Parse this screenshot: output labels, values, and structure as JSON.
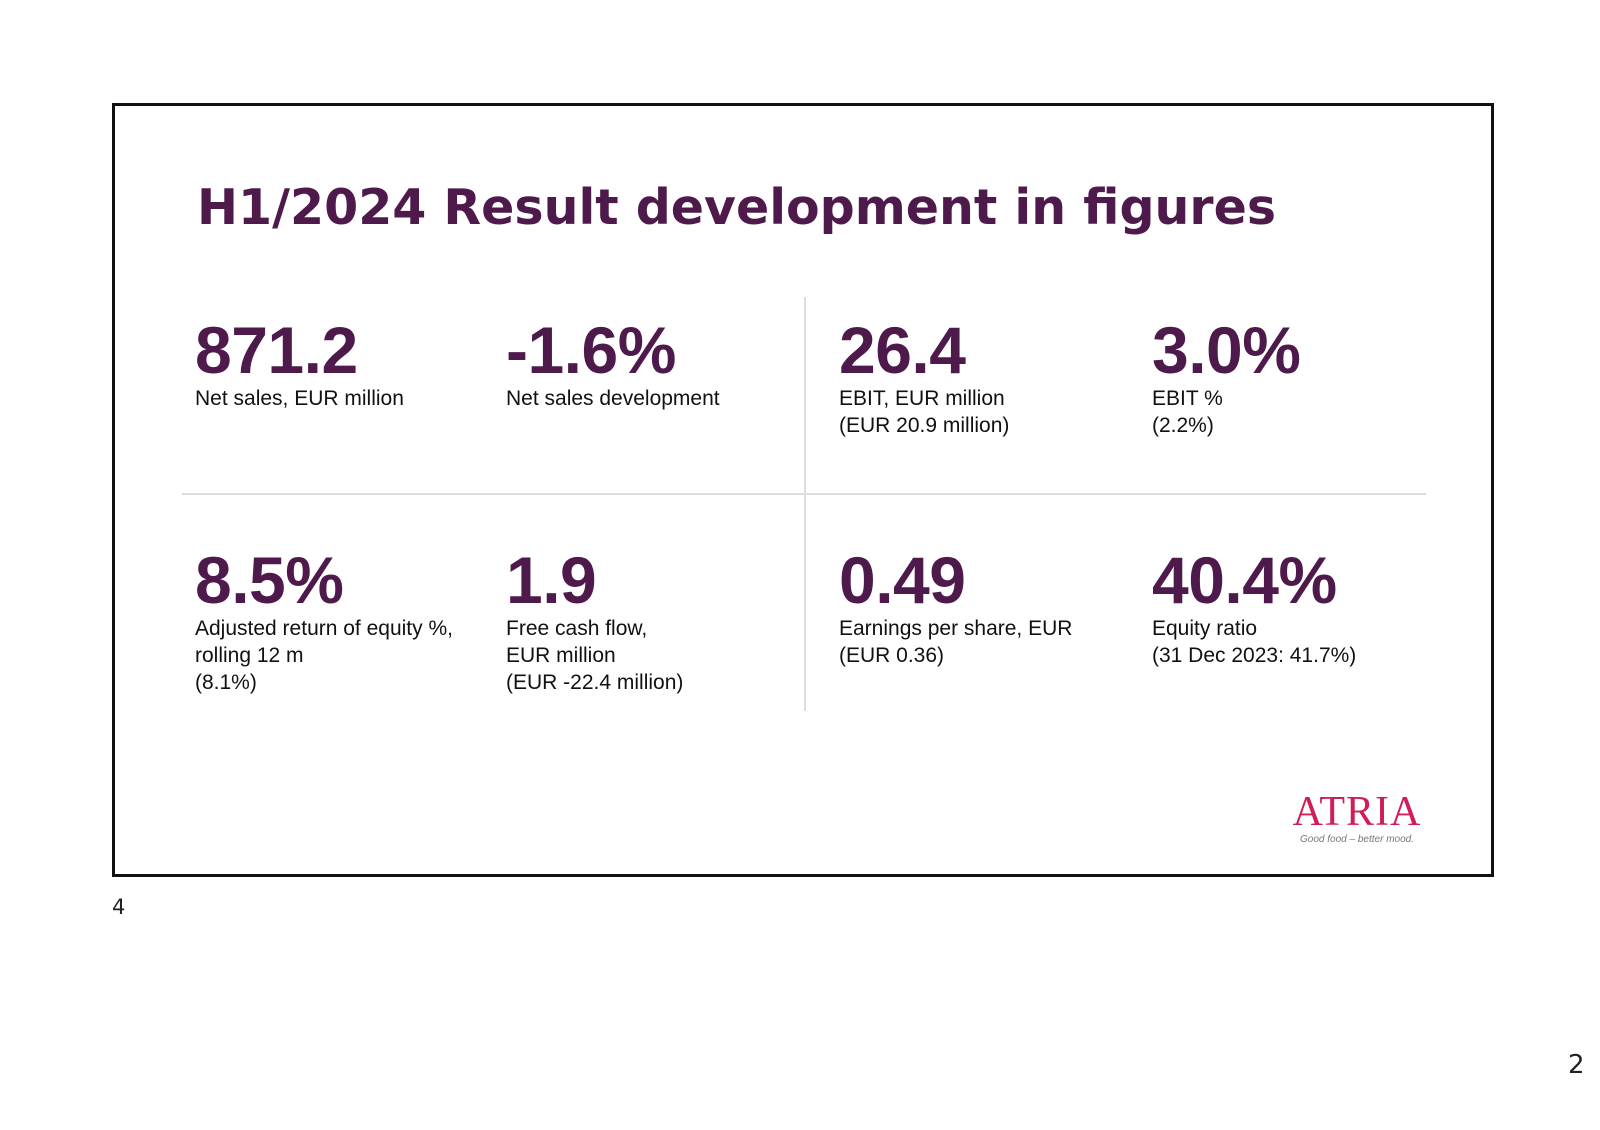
{
  "slide": {
    "title": "H1/2024 Result development in figures",
    "kpis": [
      {
        "value": "871.2",
        "lines": [
          "Net sales, EUR million"
        ]
      },
      {
        "value": "-1.6%",
        "lines": [
          "Net sales development"
        ]
      },
      {
        "value": "26.4",
        "lines": [
          "EBIT, EUR million",
          "(EUR 20.9 million)"
        ]
      },
      {
        "value": "3.0%",
        "lines": [
          "EBIT %",
          "(2.2%)"
        ]
      },
      {
        "value": "8.5%",
        "lines": [
          "Adjusted return of equity %,",
          "rolling 12 m",
          "(8.1%)"
        ]
      },
      {
        "value": "1.9",
        "lines": [
          "Free cash flow,",
          "EUR million",
          "(EUR -22.4 million)"
        ]
      },
      {
        "value": "0.49",
        "lines": [
          "Earnings per share, EUR",
          "(EUR 0.36)"
        ]
      },
      {
        "value": "40.4%",
        "lines": [
          "Equity ratio",
          "(31 Dec 2023: 41.7%)"
        ]
      }
    ],
    "logo": {
      "name": "ATRIA",
      "tagline": "Good food – better mood.",
      "color": "#d11d55"
    },
    "slide_number": "4"
  },
  "page_number": "2",
  "colors": {
    "accent": "#4e1a4c",
    "divider": "#dddddd"
  }
}
